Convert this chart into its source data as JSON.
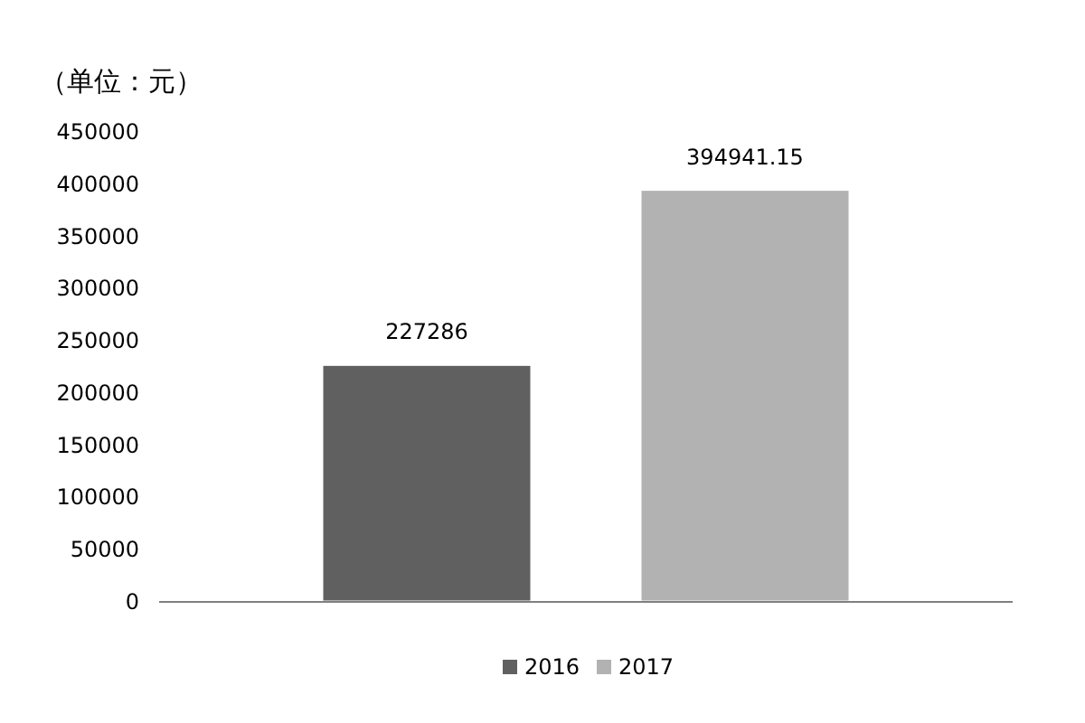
{
  "chart_data": {
    "type": "bar",
    "ylabel": "（单位：元）",
    "categories": [
      null
    ],
    "series": [
      {
        "name": "2016",
        "color": "#606060",
        "values": [
          227286
        ]
      },
      {
        "name": "2017",
        "color": "#b2b2b2",
        "values": [
          394941.15
        ]
      }
    ],
    "ylim": [
      0,
      450000
    ],
    "yticks": [
      0,
      50000,
      100000,
      150000,
      200000,
      250000,
      300000,
      350000,
      400000,
      450000
    ],
    "data_labels": true,
    "legend": "bottom"
  }
}
